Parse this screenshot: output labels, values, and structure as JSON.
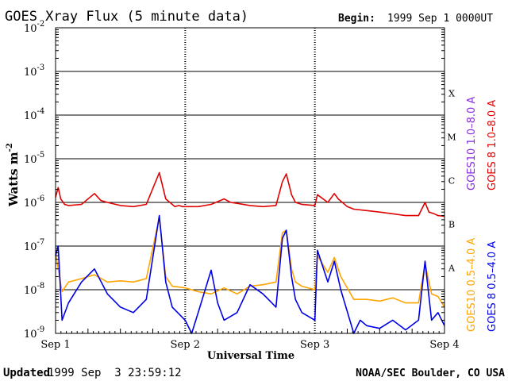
{
  "header": {
    "title": "GOES Xray Flux (5 minute data)",
    "begin_label": "Begin:",
    "begin_value": "1999 Sep 1 0000UT"
  },
  "footer": {
    "updated_label": "Updated",
    "updated_value": "1999 Sep  3 23:59:12",
    "credit": "NOAA/SEC Boulder, CO USA"
  },
  "colors": {
    "goes10_long": "#8a2be2",
    "goes8_long": "#e00000",
    "goes10_short": "#ffa500",
    "goes8_short": "#0000e6",
    "grid": "#000000"
  },
  "chart_data": {
    "type": "line",
    "title": "GOES Xray Flux (5 minute data)",
    "xlabel": "Universal Time",
    "ylabel": "Watts m",
    "ylabel_superscript": "-2",
    "y_scale": "log",
    "ylim": [
      1e-09,
      0.01
    ],
    "y_ticks": [
      {
        "base": "10",
        "exp": "-9",
        "value": 1e-09
      },
      {
        "base": "10",
        "exp": "-8",
        "value": 1e-08
      },
      {
        "base": "10",
        "exp": "-7",
        "value": 1e-07
      },
      {
        "base": "10",
        "exp": "-6",
        "value": 1e-06
      },
      {
        "base": "10",
        "exp": "-5",
        "value": 1e-05
      },
      {
        "base": "10",
        "exp": "-4",
        "value": 0.0001
      },
      {
        "base": "10",
        "exp": "-3",
        "value": 0.001
      },
      {
        "base": "10",
        "exp": "-2",
        "value": 0.01
      }
    ],
    "x_ticks": [
      "Sep 1",
      "Sep 2",
      "Sep 3",
      "Sep 4"
    ],
    "x_unit": "day",
    "xlim": [
      0,
      3
    ],
    "class_labels": [
      {
        "label": "A",
        "value": 1e-08
      },
      {
        "label": "B",
        "value": 1e-07
      },
      {
        "label": "C",
        "value": 1e-06
      },
      {
        "label": "M",
        "value": 1e-05
      },
      {
        "label": "X",
        "value": 0.0001
      }
    ],
    "legend": [
      {
        "name": "GOES10 1.0–8.0 A",
        "color": "#8a2be2",
        "group": "long"
      },
      {
        "name": "GOES 8 1.0–8.0 A",
        "color": "#e00000",
        "group": "long"
      },
      {
        "name": "GOES10 0.5–4.0 A",
        "color": "#ffa500",
        "group": "short"
      },
      {
        "name": "GOES 8 0.5–4.0 A",
        "color": "#0000e6",
        "group": "short"
      }
    ],
    "series": [
      {
        "name": "GOES 8 1.0–8.0 A",
        "color": "#e00000",
        "x": [
          0.0,
          0.02,
          0.04,
          0.07,
          0.1,
          0.2,
          0.3,
          0.35,
          0.4,
          0.5,
          0.6,
          0.7,
          0.8,
          0.85,
          0.9,
          0.92,
          0.95,
          0.98,
          1.0,
          1.1,
          1.2,
          1.3,
          1.35,
          1.4,
          1.5,
          1.6,
          1.7,
          1.75,
          1.78,
          1.82,
          1.85,
          1.9,
          2.0,
          2.02,
          2.1,
          2.15,
          2.18,
          2.25,
          2.3,
          2.4,
          2.5,
          2.6,
          2.7,
          2.8,
          2.85,
          2.88,
          2.92,
          2.95,
          3.0
        ],
        "y": [
          1.3e-06,
          2.2e-06,
          1.2e-06,
          9e-07,
          8.5e-07,
          9e-07,
          1.6e-06,
          1.1e-06,
          1e-06,
          8.5e-07,
          8e-07,
          9e-07,
          4.8e-06,
          1.2e-06,
          9e-07,
          8e-07,
          8.5e-07,
          8e-07,
          8e-07,
          8e-07,
          9e-07,
          1.2e-06,
          1e-06,
          9.5e-07,
          8.5e-07,
          8e-07,
          8.5e-07,
          3e-06,
          4.5e-06,
          1.5e-06,
          1e-06,
          9e-07,
          8.5e-07,
          1.5e-06,
          1e-06,
          1.6e-06,
          1.2e-06,
          8e-07,
          7e-07,
          6.5e-07,
          6e-07,
          5.5e-07,
          5e-07,
          5e-07,
          1e-06,
          6e-07,
          5.5e-07,
          5e-07,
          4.8e-07
        ]
      },
      {
        "name": "GOES10 0.5–4.0 A",
        "color": "#ffa500",
        "x": [
          0.0,
          0.02,
          0.05,
          0.1,
          0.2,
          0.3,
          0.4,
          0.5,
          0.6,
          0.7,
          0.8,
          0.85,
          0.9,
          1.0,
          1.1,
          1.2,
          1.3,
          1.4,
          1.5,
          1.6,
          1.7,
          1.75,
          1.78,
          1.82,
          1.85,
          1.9,
          2.0,
          2.02,
          2.1,
          2.15,
          2.2,
          2.3,
          2.4,
          2.5,
          2.6,
          2.7,
          2.8,
          2.85,
          2.9,
          2.95,
          3.0
        ],
        "y": [
          7e-08,
          3e-08,
          9e-09,
          1.5e-08,
          1.8e-08,
          2.2e-08,
          1.5e-08,
          1.6e-08,
          1.5e-08,
          1.8e-08,
          4.5e-07,
          2e-08,
          1.2e-08,
          1.1e-08,
          9e-09,
          8e-09,
          1.1e-08,
          8e-09,
          1.2e-08,
          1.3e-08,
          1.5e-08,
          2e-07,
          2.3e-07,
          3e-08,
          1.5e-08,
          1.2e-08,
          1e-08,
          6e-08,
          2.5e-08,
          5.5e-08,
          2e-08,
          6e-09,
          6e-09,
          5.5e-09,
          6.5e-09,
          5e-09,
          5e-09,
          4e-08,
          8e-09,
          7e-09,
          4e-09
        ]
      },
      {
        "name": "GOES 8 0.5–4.0 A",
        "color": "#0000e6",
        "x": [
          0.0,
          0.02,
          0.05,
          0.1,
          0.2,
          0.3,
          0.4,
          0.5,
          0.6,
          0.7,
          0.8,
          0.85,
          0.9,
          1.0,
          1.05,
          1.1,
          1.2,
          1.25,
          1.3,
          1.4,
          1.5,
          1.6,
          1.7,
          1.75,
          1.78,
          1.82,
          1.85,
          1.9,
          2.0,
          2.02,
          2.1,
          2.15,
          2.2,
          2.3,
          2.35,
          2.4,
          2.5,
          2.6,
          2.7,
          2.8,
          2.85,
          2.9,
          2.95,
          3.0
        ],
        "y": [
          6e-08,
          1e-07,
          2e-09,
          5e-09,
          1.5e-08,
          3e-08,
          8e-09,
          4e-09,
          3e-09,
          6e-09,
          5e-07,
          1.5e-08,
          4e-09,
          2e-09,
          1e-09,
          3e-09,
          2.8e-08,
          5e-09,
          2e-09,
          3e-09,
          1.3e-08,
          8e-09,
          4e-09,
          1.5e-07,
          2.3e-07,
          2e-08,
          6e-09,
          3e-09,
          2e-09,
          8e-08,
          1.5e-08,
          4.5e-08,
          1e-08,
          1e-09,
          2e-09,
          1.5e-09,
          1.3e-09,
          2e-09,
          1.2e-09,
          2e-09,
          4.5e-08,
          2e-09,
          3e-09,
          1.5e-09
        ]
      }
    ]
  }
}
